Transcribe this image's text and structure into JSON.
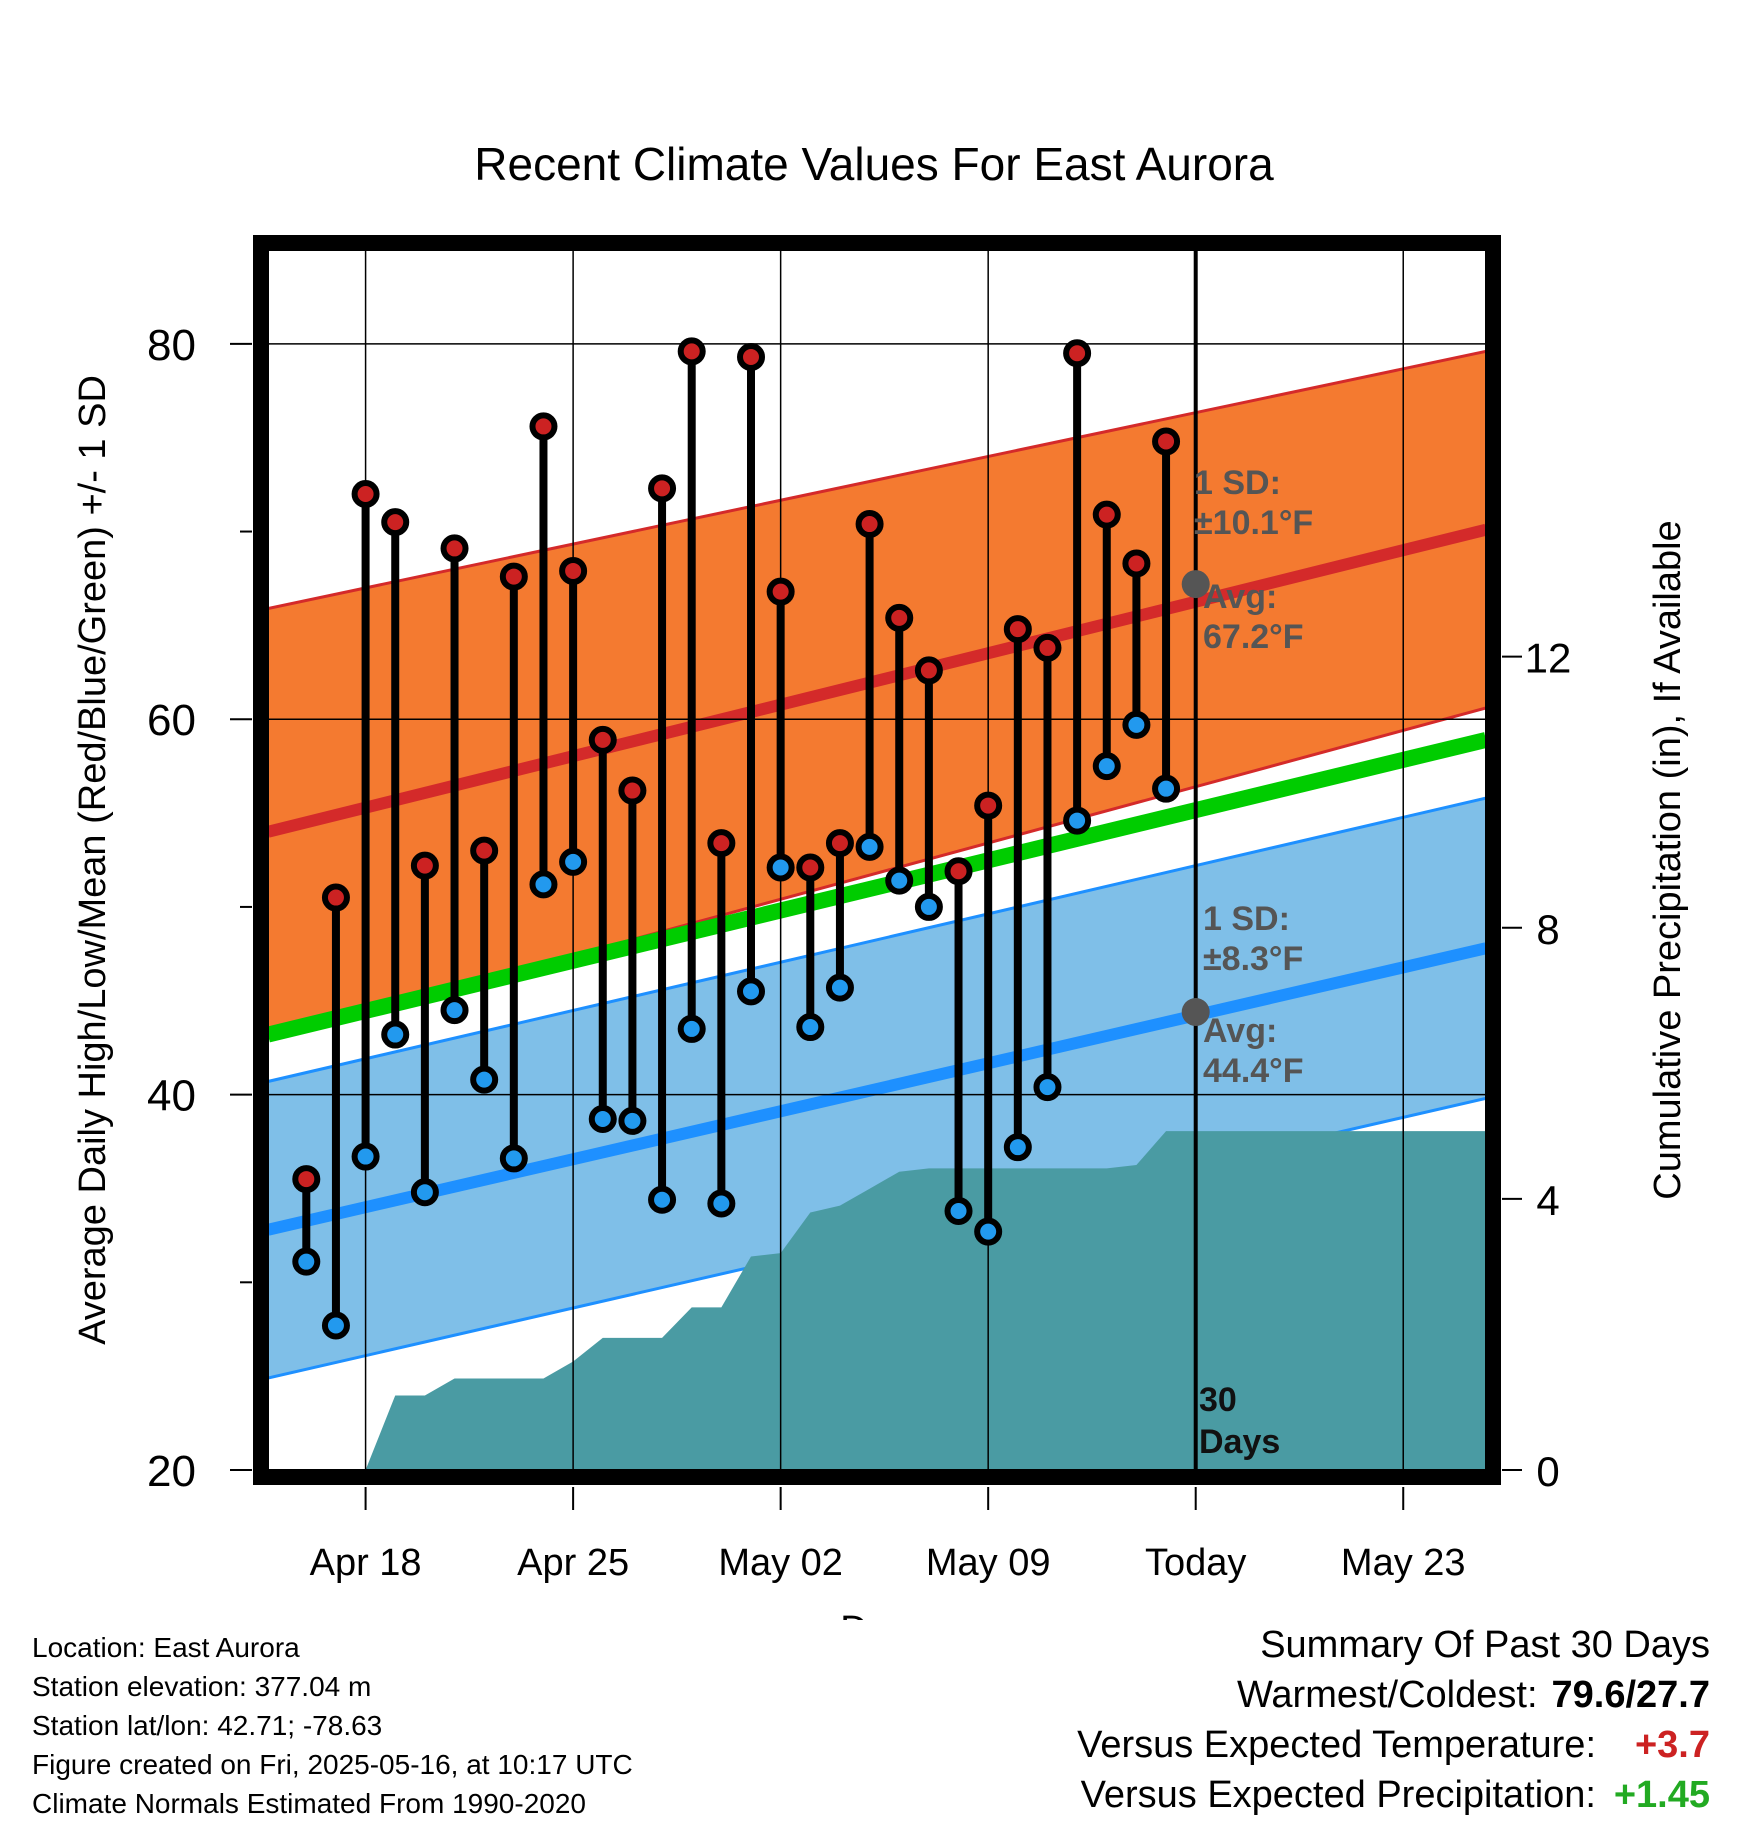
{
  "chart_data": {
    "type": "line",
    "title": "Recent Climate Values For East Aurora",
    "xlabel": "Day",
    "ylabel_left": "Average Daily High/Low/Mean (Red/Blue/Green) +/- 1 SD",
    "ylabel_right": "Cumulative Precipitation (in), If Available",
    "ylim_left": [
      20,
      85
    ],
    "ylim_right": [
      0,
      18
    ],
    "yticks_left": [
      20,
      40,
      60,
      80
    ],
    "yticks_right": [
      0,
      4,
      8,
      12
    ],
    "x_tick_labels": [
      {
        "date": "2025-04-18",
        "label": "Apr 18"
      },
      {
        "date": "2025-04-25",
        "label": "Apr 25"
      },
      {
        "date": "2025-05-02",
        "label": "May 02"
      },
      {
        "date": "2025-05-09",
        "label": "May 09"
      },
      {
        "date": "2025-05-16",
        "label": "Today"
      },
      {
        "date": "2025-05-23",
        "label": "May 23"
      }
    ],
    "xlim": [
      "2025-04-14T17:00",
      "2025-05-25T19:00"
    ],
    "today": "2025-05-16",
    "today_label_line1": "30",
    "today_label_line2": "Days",
    "days": [
      "2025-04-16",
      "2025-04-17",
      "2025-04-18",
      "2025-04-19",
      "2025-04-20",
      "2025-04-21",
      "2025-04-22",
      "2025-04-23",
      "2025-04-24",
      "2025-04-25",
      "2025-04-26",
      "2025-04-27",
      "2025-04-28",
      "2025-04-29",
      "2025-04-30",
      "2025-05-01",
      "2025-05-02",
      "2025-05-03",
      "2025-05-04",
      "2025-05-05",
      "2025-05-06",
      "2025-05-07",
      "2025-05-08",
      "2025-05-09",
      "2025-05-10",
      "2025-05-11",
      "2025-05-12",
      "2025-05-13",
      "2025-05-14",
      "2025-05-15"
    ],
    "daily_high": [
      35.5,
      50.5,
      72.0,
      70.5,
      52.2,
      69.1,
      53.0,
      67.6,
      75.6,
      67.9,
      58.9,
      56.2,
      72.3,
      79.6,
      53.4,
      79.3,
      66.8,
      52.1,
      53.4,
      70.4,
      65.4,
      62.6,
      51.9,
      55.4,
      64.8,
      63.8,
      79.5,
      70.9,
      68.3,
      74.8
    ],
    "daily_low": [
      31.1,
      27.7,
      36.7,
      43.2,
      34.8,
      44.5,
      40.8,
      36.6,
      51.2,
      52.4,
      38.7,
      38.6,
      34.4,
      43.5,
      34.2,
      45.5,
      52.1,
      43.6,
      45.7,
      53.2,
      51.4,
      50.0,
      33.8,
      32.7,
      37.2,
      40.4,
      54.6,
      57.5,
      59.7,
      56.3
    ],
    "normals": {
      "x_start": "2025-04-14T17:00",
      "x_end": "2025-05-25T19:00",
      "avg_high_start": 54.0,
      "avg_high_end": 70.1,
      "high_upper_start": 65.9,
      "high_upper_end": 79.6,
      "high_lower_start": 43.0,
      "high_lower_end": 60.6,
      "avg_mean_start": 43.2,
      "avg_mean_end": 58.9,
      "avg_low_start": 32.8,
      "avg_low_end": 47.8,
      "low_upper_start": 40.7,
      "low_upper_end": 55.8,
      "low_lower_start": 24.9,
      "low_lower_end": 39.8
    },
    "today_high_avg": 67.2,
    "today_low_avg": 44.4,
    "high_sd_label_1": "1 SD:",
    "high_sd_label_2": "±10.1°F",
    "high_avg_label_1": "Avg:",
    "high_avg_label_2": "67.2°F",
    "low_sd_label_1": "1 SD:",
    "low_sd_label_2": "±8.3°F",
    "low_avg_label_1": "Avg:",
    "low_avg_label_2": "44.4°F",
    "precip_cumulative": [
      [
        "2025-04-18",
        0.0
      ],
      [
        "2025-04-19",
        1.1
      ],
      [
        "2025-04-20",
        1.1
      ],
      [
        "2025-04-21",
        1.35
      ],
      [
        "2025-04-22",
        1.35
      ],
      [
        "2025-04-23",
        1.35
      ],
      [
        "2025-04-24",
        1.35
      ],
      [
        "2025-04-25",
        1.6
      ],
      [
        "2025-04-26",
        1.95
      ],
      [
        "2025-04-27",
        1.95
      ],
      [
        "2025-04-28",
        1.95
      ],
      [
        "2025-04-29",
        2.4
      ],
      [
        "2025-04-30",
        2.4
      ],
      [
        "2025-05-01",
        3.15
      ],
      [
        "2025-05-02",
        3.2
      ],
      [
        "2025-05-03",
        3.8
      ],
      [
        "2025-05-04",
        3.9
      ],
      [
        "2025-05-05",
        4.15
      ],
      [
        "2025-05-06",
        4.4
      ],
      [
        "2025-05-07",
        4.45
      ],
      [
        "2025-05-08",
        4.45
      ],
      [
        "2025-05-09",
        4.45
      ],
      [
        "2025-05-10",
        4.45
      ],
      [
        "2025-05-11",
        4.45
      ],
      [
        "2025-05-12",
        4.45
      ],
      [
        "2025-05-13",
        4.45
      ],
      [
        "2025-05-14",
        4.5
      ],
      [
        "2025-05-15",
        5.0
      ],
      [
        "2025-05-16",
        5.0
      ],
      [
        "2025-05-25T19:00",
        5.0
      ]
    ],
    "colors": {
      "high_band": "#f47a30",
      "high_line": "#d42a2a",
      "mean_line": "#00cc00",
      "low_band": "#7fbfe8",
      "low_line": "#1e90ff",
      "precip": "#4a9ba3",
      "high_dot": "#cc2222",
      "low_dot": "#2299ee",
      "annotation": "#555555"
    }
  },
  "metadata_panel": {
    "location": "Location: East Aurora",
    "elevation": "Station elevation: 377.04 m",
    "latlon": "Station lat/lon: 42.71; -78.63",
    "created": "Figure created on Fri, 2025-05-16, at 10:17 UTC",
    "normals": "Climate Normals Estimated From 1990-2020"
  },
  "summary": {
    "heading": "Summary Of Past 30 Days",
    "warm_cold_label": "Warmest/Coldest:",
    "warm_cold_value": "79.6/27.7",
    "temp_label": "Versus Expected Temperature:",
    "temp_value": "+3.7",
    "temp_color": "#cc2222",
    "precip_label": "Versus Expected Precipitation:",
    "precip_value": "+1.45",
    "precip_color": "#22aa22"
  }
}
